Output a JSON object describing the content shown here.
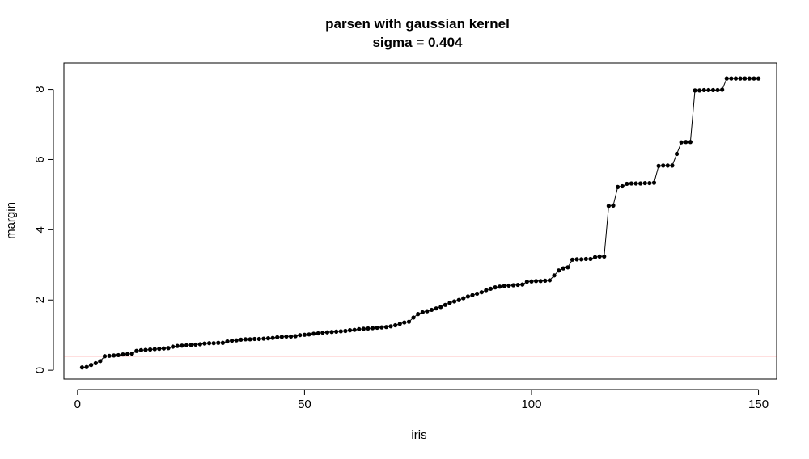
{
  "chart_data": {
    "type": "line",
    "title": "parsen with gaussian kernel",
    "subtitle": "sigma = 0.404",
    "xlabel": "iris",
    "ylabel": "margin",
    "xlim": [
      -3,
      154
    ],
    "ylim": [
      -0.25,
      8.75
    ],
    "xticks": [
      0,
      50,
      100,
      150
    ],
    "yticks": [
      0,
      2,
      4,
      6,
      8
    ],
    "grid": false,
    "line_color": "#000000",
    "point_color": "#000000",
    "hline": {
      "y": 0.404,
      "color": "#ff0000"
    },
    "series": [
      {
        "x": [
          1,
          2,
          3,
          4,
          5,
          6,
          7,
          8,
          9,
          10,
          11,
          12,
          13,
          14,
          15,
          16,
          17,
          18,
          19,
          20,
          21,
          22,
          23,
          24,
          25,
          26,
          27,
          28,
          29,
          30,
          31,
          32,
          33,
          34,
          35,
          36,
          37,
          38,
          39,
          40,
          41,
          42,
          43,
          44,
          45,
          46,
          47,
          48,
          49,
          50,
          51,
          52,
          53,
          54,
          55,
          56,
          57,
          58,
          59,
          60,
          61,
          62,
          63,
          64,
          65,
          66,
          67,
          68,
          69,
          70,
          71,
          72,
          73,
          74,
          75,
          76,
          77,
          78,
          79,
          80,
          81,
          82,
          83,
          84,
          85,
          86,
          87,
          88,
          89,
          90,
          91,
          92,
          93,
          94,
          95,
          96,
          97,
          98,
          99,
          100,
          101,
          102,
          103,
          104,
          105,
          106,
          107,
          108,
          109,
          110,
          111,
          112,
          113,
          114,
          115,
          116,
          117,
          118,
          119,
          120,
          121,
          122,
          123,
          124,
          125,
          126,
          127,
          128,
          129,
          130,
          131,
          132,
          133,
          134,
          135,
          136,
          137,
          138,
          139,
          140,
          141,
          142,
          143,
          144,
          145,
          146,
          147,
          148,
          149,
          150
        ],
        "values": [
          0.08,
          0.09,
          0.15,
          0.2,
          0.26,
          0.4,
          0.41,
          0.42,
          0.43,
          0.45,
          0.46,
          0.47,
          0.55,
          0.57,
          0.58,
          0.59,
          0.6,
          0.61,
          0.62,
          0.63,
          0.67,
          0.69,
          0.7,
          0.71,
          0.72,
          0.73,
          0.74,
          0.76,
          0.77,
          0.77,
          0.78,
          0.78,
          0.82,
          0.84,
          0.85,
          0.87,
          0.88,
          0.88,
          0.89,
          0.89,
          0.9,
          0.91,
          0.92,
          0.94,
          0.95,
          0.96,
          0.96,
          0.97,
          1.0,
          1.01,
          1.02,
          1.04,
          1.05,
          1.07,
          1.08,
          1.09,
          1.1,
          1.11,
          1.12,
          1.14,
          1.15,
          1.17,
          1.18,
          1.19,
          1.2,
          1.21,
          1.22,
          1.23,
          1.25,
          1.28,
          1.32,
          1.36,
          1.38,
          1.5,
          1.6,
          1.65,
          1.68,
          1.72,
          1.76,
          1.8,
          1.86,
          1.92,
          1.96,
          2.0,
          2.05,
          2.1,
          2.14,
          2.18,
          2.22,
          2.28,
          2.32,
          2.36,
          2.38,
          2.4,
          2.41,
          2.42,
          2.43,
          2.44,
          2.52,
          2.53,
          2.54,
          2.54,
          2.55,
          2.56,
          2.7,
          2.84,
          2.9,
          2.93,
          3.15,
          3.16,
          3.16,
          3.17,
          3.17,
          3.22,
          3.24,
          3.24,
          4.68,
          4.69,
          5.22,
          5.24,
          5.31,
          5.32,
          5.32,
          5.32,
          5.33,
          5.33,
          5.34,
          5.82,
          5.83,
          5.83,
          5.83,
          6.16,
          6.49,
          6.5,
          6.5,
          7.97,
          7.97,
          7.98,
          7.98,
          7.98,
          7.98,
          7.99,
          8.31,
          8.31,
          8.31,
          8.31,
          8.31,
          8.31,
          8.31,
          8.31
        ]
      }
    ]
  }
}
